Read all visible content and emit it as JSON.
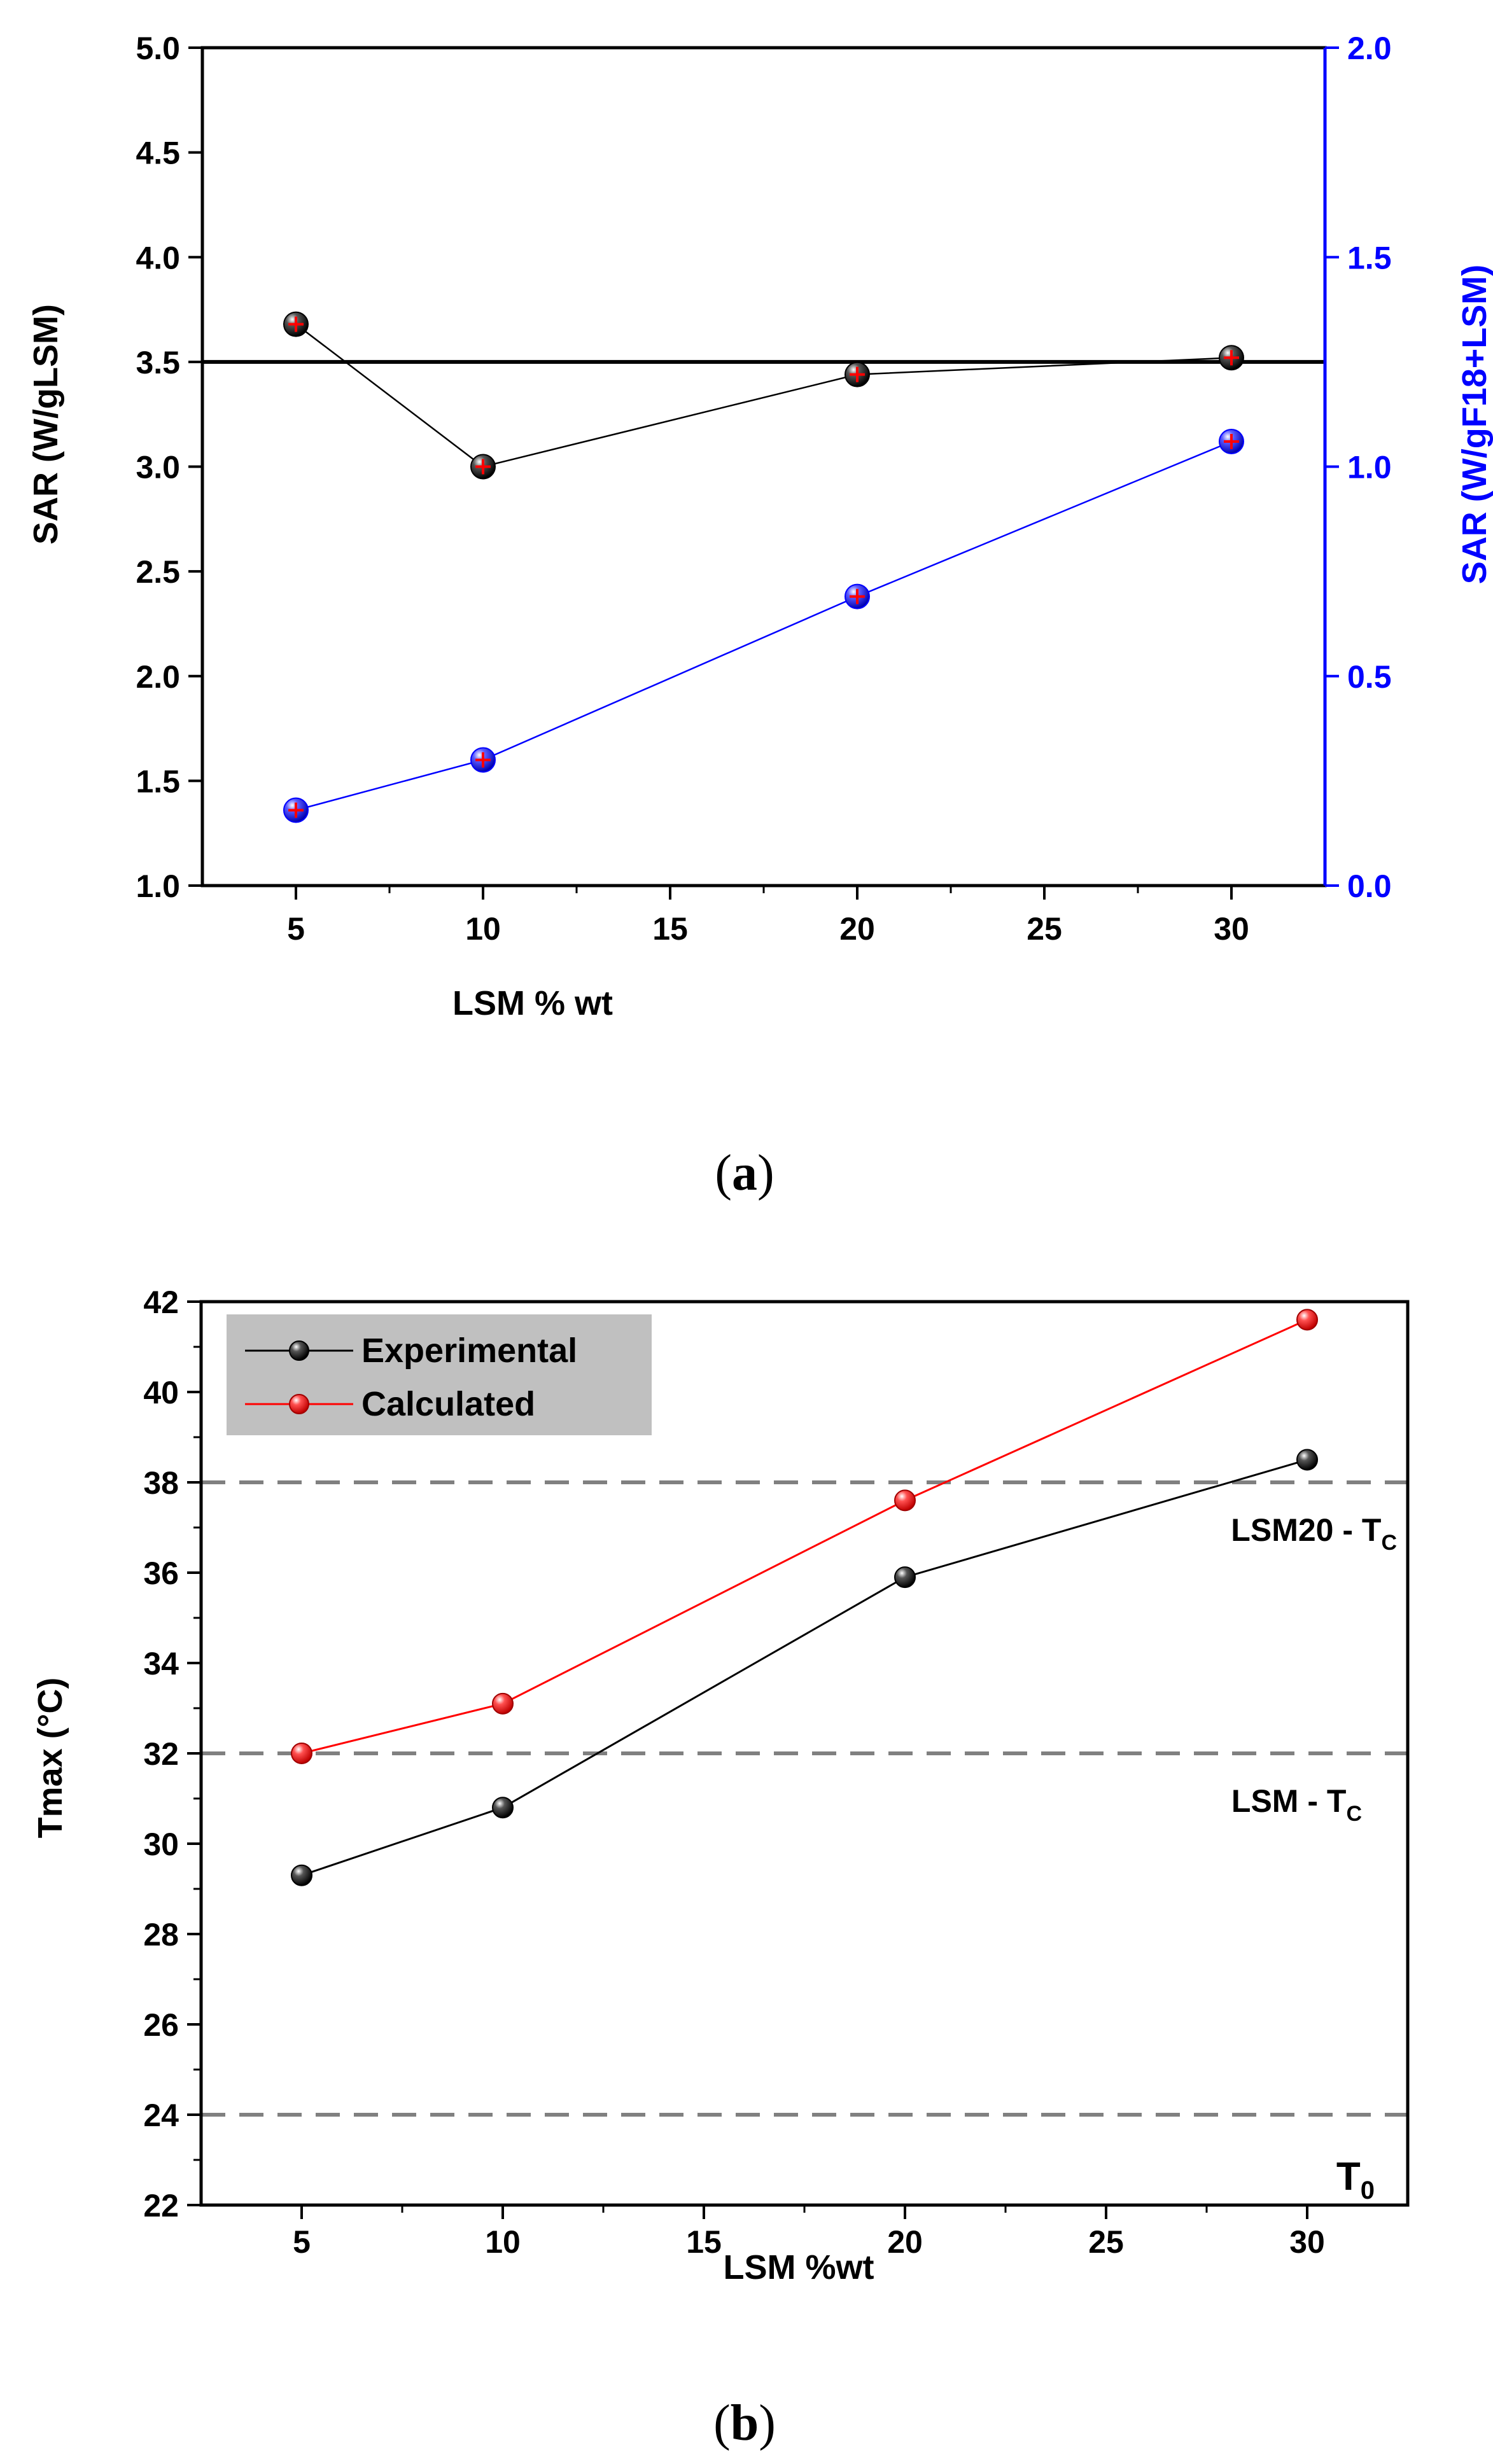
{
  "chart_data": [
    {
      "type": "line",
      "panel_label": "a",
      "xlabel": "LSM % wt",
      "ylabel": "SAR (W/gLSM)",
      "y2label": "SAR (W/gF18+LSM)",
      "xlim": [
        2.5,
        32.5
      ],
      "ylim": [
        1.0,
        5.0
      ],
      "y2lim": [
        0.0,
        2.0
      ],
      "xticks": [
        "5",
        "10",
        "15",
        "20",
        "25",
        "30"
      ],
      "yticks": [
        "1.0",
        "1.5",
        "2.0",
        "2.5",
        "3.0",
        "3.5",
        "4.0",
        "4.5",
        "5.0"
      ],
      "y2ticks": [
        "0.0",
        "0.5",
        "1.0",
        "1.5",
        "2.0"
      ],
      "reference_line": {
        "axis": "y",
        "value": 3.5
      },
      "series": [
        {
          "name": "SAR per g LSM",
          "axis": "left",
          "color": "#000000",
          "x": [
            5,
            10,
            20,
            30
          ],
          "values": [
            3.68,
            3.0,
            3.44,
            3.52
          ]
        },
        {
          "name": "SAR per g F18+LSM",
          "axis": "right",
          "color": "#0000ff",
          "x": [
            5,
            10,
            20,
            30
          ],
          "values": [
            0.18,
            0.3,
            0.69,
            1.06
          ]
        }
      ]
    },
    {
      "type": "line",
      "panel_label": "b",
      "xlabel": "LSM %wt",
      "ylabel": "Tmax (°C)",
      "xlim": [
        2.5,
        32.5
      ],
      "ylim": [
        22,
        42
      ],
      "xticks": [
        "5",
        "10",
        "15",
        "20",
        "25",
        "30"
      ],
      "yticks": [
        "22",
        "24",
        "26",
        "28",
        "30",
        "32",
        "34",
        "36",
        "38",
        "40",
        "42"
      ],
      "legend": {
        "position": "top-left",
        "background": "#c0c0c0"
      },
      "reference_lines": [
        {
          "value": 38,
          "label": "LSM20 - T",
          "sub": "C"
        },
        {
          "value": 32,
          "label": "LSM - T",
          "sub": "C"
        },
        {
          "value": 24,
          "label": "T",
          "sub": "0"
        }
      ],
      "series": [
        {
          "name": "Experimental",
          "color": "#000000",
          "x": [
            5,
            10,
            20,
            30
          ],
          "values": [
            29.3,
            30.8,
            35.9,
            38.5
          ]
        },
        {
          "name": "Calculated",
          "color": "#ff0000",
          "x": [
            5,
            10,
            20,
            30
          ],
          "values": [
            32.0,
            33.1,
            37.6,
            41.6
          ]
        }
      ]
    }
  ]
}
